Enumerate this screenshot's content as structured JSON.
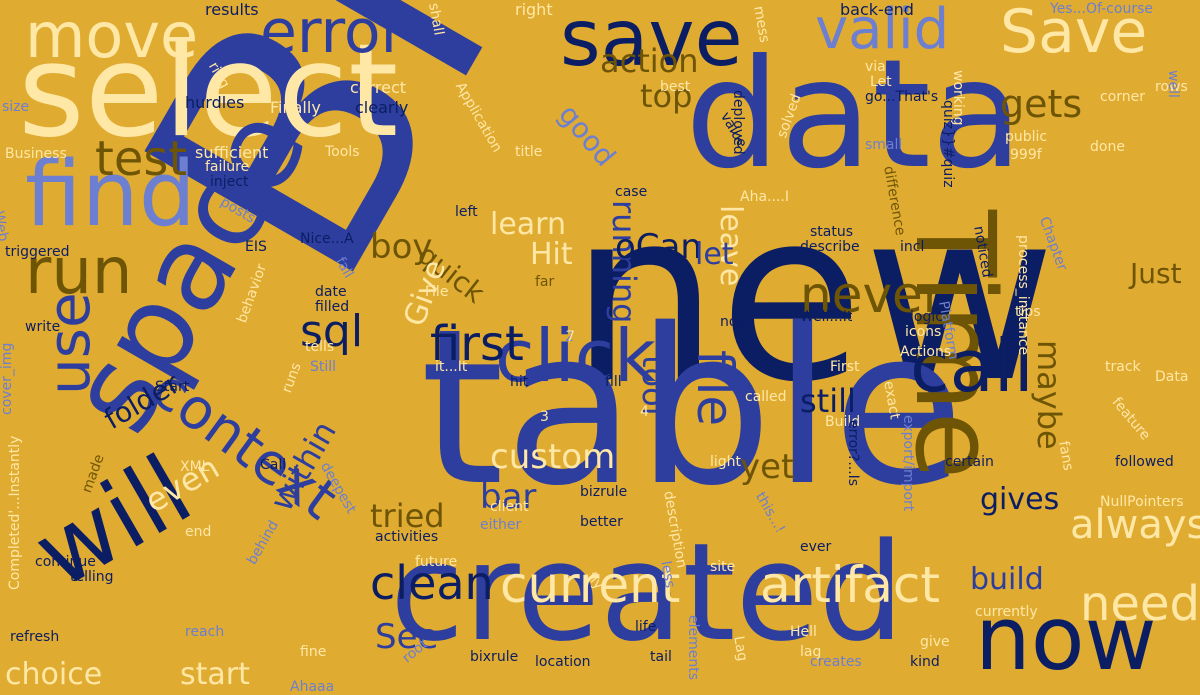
{
  "colors": {
    "background": "#E0AB31",
    "navy": "#0B1D63",
    "blue": "#2D3E9E",
    "periwinkle": "#6C7FD0",
    "brown": "#6E5505",
    "cream": "#FFE7A6"
  },
  "words": [
    {
      "text": "BPM",
      "color": "blue"
    },
    {
      "text": "new",
      "color": "navy"
    },
    {
      "text": "table",
      "color": "blue"
    },
    {
      "text": "data",
      "color": "blue"
    },
    {
      "text": "created",
      "color": "blue"
    },
    {
      "text": "select",
      "color": "cream"
    },
    {
      "text": "space",
      "color": "blue"
    },
    {
      "text": "Time",
      "color": "brown"
    },
    {
      "text": "will",
      "color": "navy"
    },
    {
      "text": "find",
      "color": "periwinkle"
    },
    {
      "text": "now",
      "color": "navy"
    },
    {
      "text": "save",
      "color": "navy"
    },
    {
      "text": "error",
      "color": "blue"
    },
    {
      "text": "move",
      "color": "cream"
    },
    {
      "text": "Save",
      "color": "cream"
    },
    {
      "text": "valid",
      "color": "periwinkle"
    },
    {
      "text": "call",
      "color": "navy"
    },
    {
      "text": "click",
      "color": "blue"
    },
    {
      "text": "run",
      "color": "brown"
    },
    {
      "text": "context",
      "color": "blue"
    },
    {
      "text": "use",
      "color": "blue"
    },
    {
      "text": "test",
      "color": "brown"
    },
    {
      "text": "first",
      "color": "navy"
    },
    {
      "text": "file",
      "color": "blue"
    },
    {
      "text": "current",
      "color": "cream"
    },
    {
      "text": "artifact",
      "color": "cream"
    },
    {
      "text": "clean",
      "color": "navy"
    },
    {
      "text": "need",
      "color": "cream"
    },
    {
      "text": "never",
      "color": "brown"
    },
    {
      "text": "sql",
      "color": "navy"
    },
    {
      "text": "always",
      "color": "cream"
    },
    {
      "text": "gets",
      "color": "brown"
    },
    {
      "text": "action",
      "color": "brown"
    },
    {
      "text": "top",
      "color": "brown"
    },
    {
      "text": "good",
      "color": "periwinkle"
    },
    {
      "text": "running",
      "color": "blue"
    },
    {
      "text": "oCan",
      "color": "navy"
    },
    {
      "text": "leave",
      "color": "cream"
    },
    {
      "text": "learn",
      "color": "cream"
    },
    {
      "text": "Hit",
      "color": "cream"
    },
    {
      "text": "let",
      "color": "blue"
    },
    {
      "text": "quick",
      "color": "brown"
    },
    {
      "text": "boy",
      "color": "brown"
    },
    {
      "text": "Give",
      "color": "cream"
    },
    {
      "text": "folder",
      "color": "navy"
    },
    {
      "text": "tool",
      "color": "blue"
    },
    {
      "text": "custom",
      "color": "cream"
    },
    {
      "text": "bar",
      "color": "blue"
    },
    {
      "text": "tried",
      "color": "brown"
    },
    {
      "text": "even",
      "color": "cream"
    },
    {
      "text": "within",
      "color": "blue"
    },
    {
      "text": "yet",
      "color": "brown"
    },
    {
      "text": "still",
      "color": "navy"
    },
    {
      "text": "maybe",
      "color": "brown"
    },
    {
      "text": "gives",
      "color": "navy"
    },
    {
      "text": "build",
      "color": "blue"
    },
    {
      "text": "See",
      "color": "blue"
    },
    {
      "text": "choice",
      "color": "cream"
    },
    {
      "text": "start",
      "color": "cream"
    },
    {
      "text": "Just",
      "color": "brown"
    },
    {
      "text": "results",
      "color": "navy"
    },
    {
      "text": "right",
      "color": "cream"
    },
    {
      "text": "back-end",
      "color": "navy"
    },
    {
      "text": "Yes...Of-course",
      "color": "periwinkle"
    },
    {
      "text": "hurdles",
      "color": "navy"
    },
    {
      "text": "Finally",
      "color": "cream"
    },
    {
      "text": "correct",
      "color": "cream"
    },
    {
      "text": "clearly",
      "color": "navy"
    },
    {
      "text": "Application",
      "color": "cream"
    },
    {
      "text": "best",
      "color": "cream"
    },
    {
      "text": "Let",
      "color": "cream"
    },
    {
      "text": "go...That's",
      "color": "navy"
    },
    {
      "text": "working",
      "color": "cream"
    },
    {
      "text": "corner",
      "color": "cream"
    },
    {
      "text": "rows",
      "color": "cream"
    },
    {
      "text": "size",
      "color": "periwinkle"
    },
    {
      "text": "Business",
      "color": "cream"
    },
    {
      "text": "sufficient",
      "color": "cream"
    },
    {
      "text": "Tools",
      "color": "cream"
    },
    {
      "text": "failure",
      "color": "cream"
    },
    {
      "text": "inject",
      "color": "navy"
    },
    {
      "text": "public",
      "color": "cream"
    },
    {
      "text": "small",
      "color": "periwinkle"
    },
    {
      "text": "done",
      "color": "cream"
    },
    {
      "text": "title",
      "color": "cream"
    },
    {
      "text": "999f",
      "color": "cream"
    },
    {
      "text": "solved",
      "color": "cream"
    },
    {
      "text": "case",
      "color": "navy"
    },
    {
      "text": "Aha....I",
      "color": "cream"
    },
    {
      "text": "posts",
      "color": "periwinkle"
    },
    {
      "text": "left",
      "color": "navy"
    },
    {
      "text": "triggered",
      "color": "navy"
    },
    {
      "text": "EIS",
      "color": "navy"
    },
    {
      "text": "Nice...A",
      "color": "navy"
    },
    {
      "text": "status",
      "color": "navy"
    },
    {
      "text": "describe",
      "color": "navy"
    },
    {
      "text": "incl",
      "color": "navy"
    },
    {
      "text": "noticed",
      "color": "navy"
    },
    {
      "text": "Chapter",
      "color": "periwinkle"
    },
    {
      "text": "process_instance",
      "color": "cream"
    },
    {
      "text": "Web",
      "color": "periwinkle"
    },
    {
      "text": "difference",
      "color": "brown"
    },
    {
      "text": "fall",
      "color": "periwinkle"
    },
    {
      "text": "far",
      "color": "brown"
    },
    {
      "text": "File",
      "color": "cream"
    },
    {
      "text": "date",
      "color": "navy"
    },
    {
      "text": "filled",
      "color": "navy"
    },
    {
      "text": "write",
      "color": "navy"
    },
    {
      "text": "tells",
      "color": "cream"
    },
    {
      "text": "Still",
      "color": "periwinkle"
    },
    {
      "text": "it...It",
      "color": "cream"
    },
    {
      "text": "behavior",
      "color": "cream"
    },
    {
      "text": "runs",
      "color": "cream"
    },
    {
      "text": "Platform",
      "color": "periwinkle"
    },
    {
      "text": "tips",
      "color": "cream"
    },
    {
      "text": "icons",
      "color": "cream"
    },
    {
      "text": "logic",
      "color": "navy"
    },
    {
      "text": "Actions",
      "color": "cream"
    },
    {
      "text": "Well...It",
      "color": "navy"
    },
    {
      "text": "none",
      "color": "navy"
    },
    {
      "text": "First",
      "color": "cream"
    },
    {
      "text": "track",
      "color": "cream"
    },
    {
      "text": "Data",
      "color": "cream"
    },
    {
      "text": "hit",
      "color": "navy"
    },
    {
      "text": "fill",
      "color": "navy"
    },
    {
      "text": "Start",
      "color": "navy"
    },
    {
      "text": "Call",
      "color": "navy"
    },
    {
      "text": "made",
      "color": "brown"
    },
    {
      "text": "called",
      "color": "cream"
    },
    {
      "text": "Build",
      "color": "cream"
    },
    {
      "text": "exact",
      "color": "cream"
    },
    {
      "text": "feature",
      "color": "cream"
    },
    {
      "text": "XML",
      "color": "cream"
    },
    {
      "text": "deepest",
      "color": "periwinkle"
    },
    {
      "text": "end",
      "color": "cream"
    },
    {
      "text": "light",
      "color": "cream"
    },
    {
      "text": "error?...Is",
      "color": "navy"
    },
    {
      "text": "certain",
      "color": "navy"
    },
    {
      "text": "followed",
      "color": "navy"
    },
    {
      "text": "export/import",
      "color": "periwinkle"
    },
    {
      "text": "fans",
      "color": "cream"
    },
    {
      "text": "NullPointers",
      "color": "cream"
    },
    {
      "text": "bizrule",
      "color": "navy"
    },
    {
      "text": "client",
      "color": "cream"
    },
    {
      "text": "either",
      "color": "periwinkle"
    },
    {
      "text": "description",
      "color": "cream"
    },
    {
      "text": "this...!",
      "color": "periwinkle"
    },
    {
      "text": "better",
      "color": "navy"
    },
    {
      "text": "activities",
      "color": "navy"
    },
    {
      "text": "continue",
      "color": "navy"
    },
    {
      "text": "telling",
      "color": "navy"
    },
    {
      "text": "future",
      "color": "cream"
    },
    {
      "text": "site",
      "color": "cream"
    },
    {
      "text": "ever",
      "color": "navy"
    },
    {
      "text": "currently",
      "color": "cream"
    },
    {
      "text": "behind",
      "color": "periwinkle"
    },
    {
      "text": "refresh",
      "color": "navy"
    },
    {
      "text": "reach",
      "color": "periwinkle"
    },
    {
      "text": "root",
      "color": "periwinkle"
    },
    {
      "text": "fine",
      "color": "cream"
    },
    {
      "text": "Ahaaa",
      "color": "periwinkle"
    },
    {
      "text": "bixrule",
      "color": "navy"
    },
    {
      "text": "location",
      "color": "navy"
    },
    {
      "text": "life",
      "color": "navy"
    },
    {
      "text": "tail",
      "color": "navy"
    },
    {
      "text": "elements",
      "color": "periwinkle"
    },
    {
      "text": "Hell",
      "color": "cream"
    },
    {
      "text": "lag",
      "color": "cream"
    },
    {
      "text": "creates",
      "color": "periwinkle"
    },
    {
      "text": "give",
      "color": "cream"
    },
    {
      "text": "kind",
      "color": "navy"
    },
    {
      "text": "ring",
      "color": "cream"
    },
    {
      "text": "shall",
      "color": "cream"
    },
    {
      "text": "mess",
      "color": "cream"
    },
    {
      "text": "via",
      "color": "cream"
    },
    {
      "text": "value",
      "color": "navy"
    },
    {
      "text": "deployed",
      "color": "navy"
    },
    {
      "text": "quiz}}#quiz",
      "color": "navy"
    },
    {
      "text": "well",
      "color": "periwinkle"
    },
    {
      "text": "cover_img",
      "color": "periwinkle"
    },
    {
      "text": "Completed'...Instantly",
      "color": "cream"
    },
    {
      "text": "less",
      "color": "periwinkle"
    },
    {
      "text": "fly",
      "color": "cream"
    },
    {
      "text": "Lag",
      "color": "cream"
    },
    {
      "text": "2",
      "color": "periwinkle"
    },
    {
      "text": "3",
      "color": "cream"
    },
    {
      "text": "4",
      "color": "cream"
    },
    {
      "text": "7",
      "color": "cream"
    }
  ]
}
